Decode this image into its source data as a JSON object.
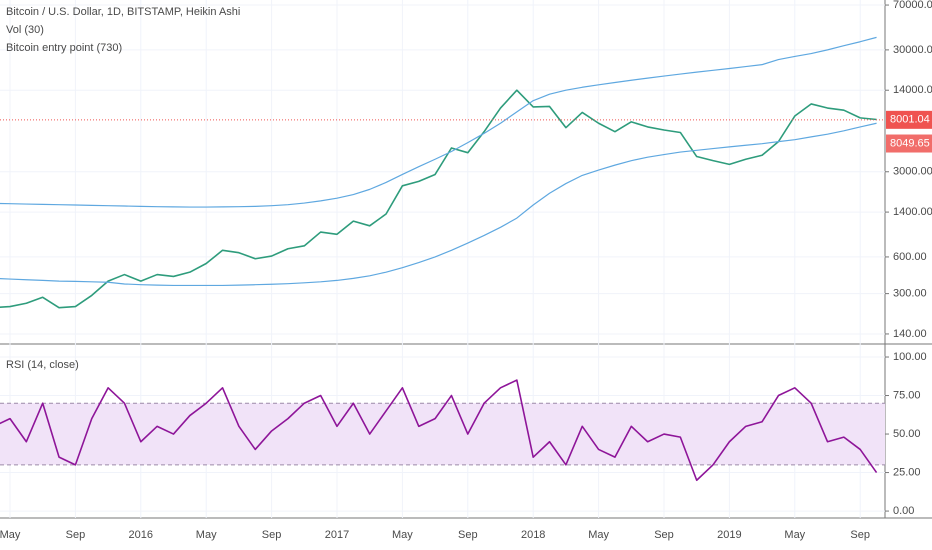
{
  "chart_data": [
    {
      "type": "line",
      "title": "Bitcoin / U.S. Dollar, 1D, BITSTAMP, Heikin Ashi",
      "indicators": [
        "Vol (30)",
        "Bitcoin entry point (730)"
      ],
      "categories": [
        null,
        "May",
        null,
        null,
        null,
        "Sep",
        null,
        null,
        null,
        "2016",
        null,
        null,
        null,
        "May",
        null,
        null,
        null,
        "Sep",
        null,
        null,
        null,
        "2017",
        null,
        null,
        null,
        "May",
        null,
        null,
        null,
        "Sep",
        null,
        null,
        null,
        "2018",
        null,
        null,
        null,
        "May",
        null,
        null,
        null,
        "Sep",
        null,
        null,
        null,
        "2019",
        null,
        null,
        null,
        "May",
        null,
        null,
        null,
        "Sep",
        null
      ],
      "series": [
        {
          "color": "#2e9c7c",
          "values": [
            230,
            235,
            250,
            280,
            230,
            235,
            290,
            380,
            430,
            380,
            430,
            415,
            450,
            530,
            680,
            650,
            580,
            610,
            700,
            740,
            960,
            920,
            1180,
            1080,
            1350,
            2300,
            2500,
            2850,
            4700,
            4300,
            6400,
            10000,
            14000,
            10200,
            10300,
            6900,
            9200,
            7500,
            6400,
            7700,
            7000,
            6600,
            6300,
            4000,
            3700,
            3450,
            3800,
            4100,
            5300,
            8600,
            10800,
            10000,
            9600,
            8300,
            8050
          ]
        },
        {
          "color": "#5fa8e0",
          "values": [
            1650,
            1640,
            1630,
            1620,
            1610,
            1600,
            1590,
            1580,
            1570,
            1560,
            1550,
            1545,
            1540,
            1540,
            1545,
            1550,
            1560,
            1580,
            1610,
            1660,
            1730,
            1820,
            1950,
            2150,
            2450,
            2850,
            3300,
            3800,
            4400,
            5200,
            6200,
            7500,
            9300,
            11500,
            13000,
            14000,
            14800,
            15500,
            16200,
            16900,
            17600,
            18300,
            19000,
            19700,
            20400,
            21100,
            21900,
            22700,
            25000,
            26500,
            28000,
            30000,
            32500,
            35000,
            38000
          ]
        },
        {
          "color": "#5fa8e0",
          "values": [
            400,
            395,
            390,
            385,
            380,
            378,
            375,
            372,
            360,
            355,
            352,
            350,
            350,
            350,
            350,
            352,
            355,
            358,
            362,
            368,
            375,
            385,
            400,
            420,
            450,
            490,
            540,
            600,
            680,
            780,
            900,
            1050,
            1250,
            1600,
            2000,
            2400,
            2800,
            3100,
            3400,
            3700,
            3950,
            4150,
            4350,
            4500,
            4650,
            4800,
            4950,
            5100,
            5300,
            5500,
            5800,
            6100,
            6500,
            7000,
            7500
          ]
        }
      ],
      "log": true,
      "ylim": [
        118,
        77000
      ],
      "yticks": [
        {
          "value": 70000,
          "label": "70000.00"
        },
        {
          "value": 30000,
          "label": "30000.00"
        },
        {
          "value": 14000,
          "label": "14000.00"
        },
        {
          "value": 3000,
          "label": "3000.00"
        },
        {
          "value": 1400,
          "label": "1400.00"
        },
        {
          "value": 600,
          "label": "600.00"
        },
        {
          "value": 300,
          "label": "300.00"
        },
        {
          "value": 140,
          "label": "140.00"
        }
      ],
      "last_prices": [
        8001.04,
        8049.65
      ],
      "price_line_color": "#ef5350",
      "grid": true
    },
    {
      "type": "line",
      "title": "RSI (14, close)",
      "series": [
        {
          "color": "#8e1599",
          "values": [
            55,
            60,
            45,
            70,
            35,
            30,
            60,
            80,
            70,
            45,
            55,
            50,
            62,
            70,
            80,
            55,
            40,
            52,
            60,
            70,
            75,
            55,
            70,
            50,
            65,
            80,
            55,
            60,
            75,
            50,
            70,
            80,
            85,
            35,
            45,
            30,
            55,
            40,
            35,
            55,
            45,
            50,
            48,
            20,
            30,
            45,
            55,
            58,
            75,
            80,
            70,
            45,
            48,
            40,
            25
          ]
        }
      ],
      "ylim": [
        -4.5,
        107.8
      ],
      "yticks": [
        {
          "value": 100,
          "label": "100.00"
        },
        {
          "value": 75,
          "label": "75.00"
        },
        {
          "value": 50,
          "label": "50.00"
        },
        {
          "value": 25,
          "label": "25.00"
        },
        {
          "value": 0,
          "label": "0.00"
        }
      ],
      "bands": [
        30,
        70
      ],
      "band_color": "#f1e3f8",
      "grid": true
    }
  ]
}
